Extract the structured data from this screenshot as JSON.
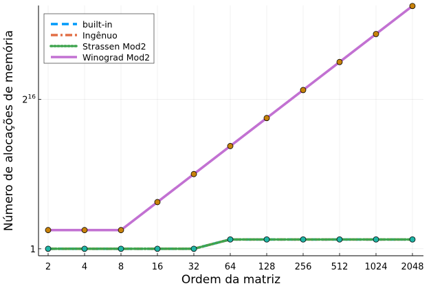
{
  "chart_data": {
    "type": "line",
    "title": "",
    "xlabel": "Ordem da matriz",
    "ylabel": "Número de alocações de memória",
    "x_ticks": [
      "2",
      "4",
      "8",
      "16",
      "32",
      "64",
      "128",
      "256",
      "512",
      "1024",
      "2048"
    ],
    "x_scale": "log2",
    "y_scale": "log2",
    "y_ticks": [
      {
        "value": 1,
        "base": "1",
        "exponent": ""
      },
      {
        "value": 65536,
        "base": "2",
        "exponent": "16"
      }
    ],
    "ylim_log2": [
      -0.6,
      26.2
    ],
    "grid": true,
    "legend_position": "top-left",
    "series": [
      {
        "name": "built-in",
        "color": "#009AFA",
        "style": "dash",
        "log2_values": [
          0,
          0,
          0,
          0,
          0,
          1,
          1,
          1,
          1,
          1,
          1
        ],
        "marker": "none"
      },
      {
        "name": "Ingênuo",
        "color": "#E26F46",
        "style": "dashdot",
        "log2_values": [
          0,
          0,
          0,
          0,
          0,
          1,
          1,
          1,
          1,
          1,
          1
        ],
        "marker": "none"
      },
      {
        "name": "Strassen Mod2",
        "color": "#3EA44E",
        "style": "dot",
        "log2_values": [
          0,
          0,
          0,
          0,
          0,
          1,
          1,
          1,
          1,
          1,
          1
        ],
        "marker": "teal-circle"
      },
      {
        "name": "Winograd Mod2",
        "color": "#C271D2",
        "style": "solid",
        "log2_values": [
          2,
          2,
          2,
          5,
          8,
          11,
          14,
          17,
          20,
          23,
          26
        ],
        "marker": "orange-circle"
      }
    ],
    "marker_colors": {
      "orange": "#C8820B",
      "teal": "#1FB5A6"
    }
  }
}
